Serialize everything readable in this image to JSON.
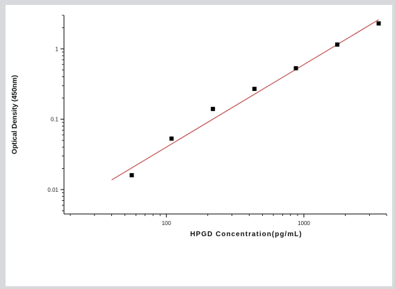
{
  "chart_data": {
    "type": "scatter",
    "title": "",
    "xlabel": "HPGD Concentration(pg/mL)",
    "ylabel": "Optical Density (450nm)",
    "x_scale": "log",
    "y_scale": "log",
    "xlim": [
      18,
      4000
    ],
    "ylim": [
      0.0045,
      3.0
    ],
    "x_tick_values": [
      100,
      1000
    ],
    "x_tick_labels": [
      "100",
      "1000"
    ],
    "y_tick_values": [
      0.01,
      0.1,
      1
    ],
    "y_tick_labels": [
      "0.01",
      "0.1",
      "1"
    ],
    "grid": false,
    "legend": "none",
    "colors": {
      "points": "#000000",
      "fit_line": "#c0504d",
      "axis": "#000000"
    },
    "series": [
      {
        "x": [
          56,
          109,
          218,
          437,
          875,
          1750,
          3500
        ],
        "y": [
          0.016,
          0.053,
          0.14,
          0.27,
          0.53,
          1.15,
          2.3
        ]
      }
    ],
    "fit_line": {
      "x": [
        40,
        3500
      ],
      "y": [
        0.0137,
        2.6
      ]
    }
  }
}
